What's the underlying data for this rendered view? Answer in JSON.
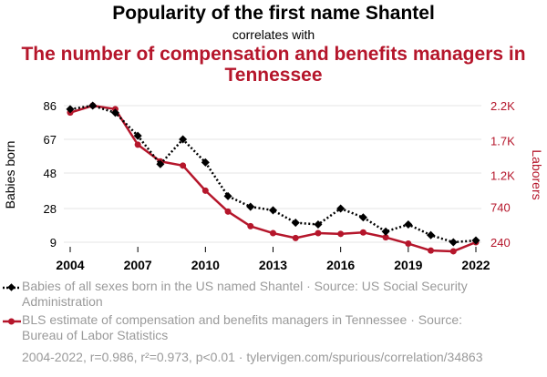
{
  "header": {
    "title": "Popularity of the first name Shantel",
    "correlates": "correlates with",
    "subtitle": "The number of compensation and benefits managers in Tennessee"
  },
  "chart_data": {
    "type": "line",
    "x": [
      2004,
      2005,
      2006,
      2007,
      2008,
      2009,
      2010,
      2011,
      2012,
      2013,
      2014,
      2015,
      2016,
      2017,
      2018,
      2019,
      2020,
      2021,
      2022
    ],
    "xticks": [
      "2004",
      "2007",
      "2010",
      "2013",
      "2016",
      "2019",
      "2022"
    ],
    "series": [
      {
        "name": "Babies of all sexes born in the US named Shantel · Source: US Social Security Administration",
        "axis": "left",
        "color": "#000000",
        "style": "dotted",
        "marker": "diamond",
        "values": [
          84,
          86,
          82,
          69,
          53,
          67,
          54,
          35,
          29,
          27,
          20,
          19,
          28,
          23,
          15,
          19,
          13,
          9,
          10
        ]
      },
      {
        "name": "BLS estimate of compensation and benefits managers in Tennessee · Source: Bureau of Labor Statistics",
        "axis": "right",
        "color": "#b5162b",
        "style": "solid",
        "marker": "circle",
        "values": [
          2100,
          2200,
          2150,
          1640,
          1400,
          1340,
          980,
          680,
          470,
          370,
          300,
          370,
          360,
          380,
          310,
          220,
          120,
          110,
          240
        ]
      }
    ],
    "y_left": {
      "label": "Babies born",
      "ticks": [
        "86",
        "67",
        "48",
        "28",
        "9"
      ],
      "tick_values": [
        86,
        67,
        48,
        28,
        9
      ],
      "range": [
        9,
        86
      ]
    },
    "y_right": {
      "label": "Laborers",
      "ticks": [
        "2.2K",
        "1.7K",
        "1.2K",
        "740",
        "240"
      ],
      "tick_values": [
        2200,
        1700,
        1200,
        740,
        240
      ],
      "range": [
        240,
        2200
      ]
    },
    "grid": "horizontal"
  },
  "footer": "2004-2022, r=0.986, r²=0.973, p<0.01 · tylervigen.com/spurious/correlation/34863"
}
